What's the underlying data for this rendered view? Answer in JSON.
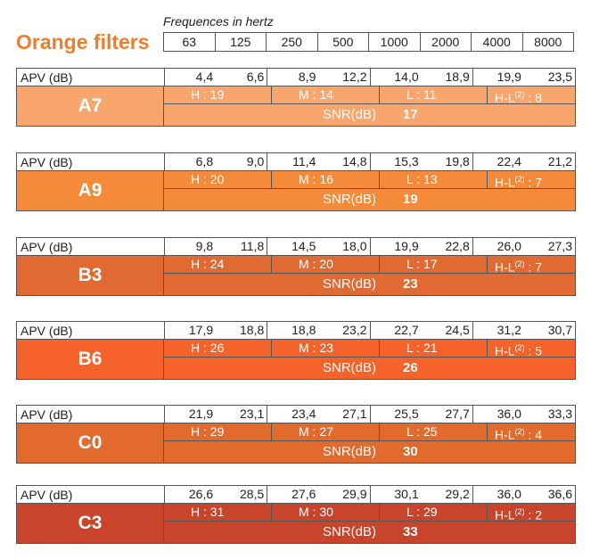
{
  "title": "Orange filters",
  "frequency_caption": "Frequences in hertz",
  "frequencies": [
    "63",
    "125",
    "250",
    "500",
    "1000",
    "2000",
    "4000",
    "8000"
  ],
  "apv_label": "APV (dB)",
  "snr_label": "SNR(dB)",
  "filters": [
    {
      "code": "A7",
      "color": "#f9a56e",
      "apv": [
        "4,4",
        "6,6",
        "8,9",
        "12,2",
        "14,0",
        "18,9",
        "19,9",
        "23,5"
      ],
      "H": "19",
      "M": "14",
      "L": "11",
      "HL": "8",
      "SNR": "17"
    },
    {
      "code": "A9",
      "color": "#f58a3a",
      "apv": [
        "6,8",
        "9,0",
        "11,4",
        "14,8",
        "15,3",
        "19,8",
        "22,4",
        "21,2"
      ],
      "H": "20",
      "M": "16",
      "L": "13",
      "HL": "7",
      "SNR": "19"
    },
    {
      "code": "B3",
      "color": "#e06a32",
      "apv": [
        "9,8",
        "11,8",
        "14,5",
        "18,0",
        "19,9",
        "22,8",
        "26,0",
        "27,3"
      ],
      "H": "24",
      "M": "20",
      "L": "17",
      "HL": "7",
      "SNR": "23"
    },
    {
      "code": "B6",
      "color": "#f5622a",
      "apv": [
        "17,9",
        "18,8",
        "18,8",
        "23,2",
        "22,7",
        "24,5",
        "31,2",
        "30,7"
      ],
      "H": "26",
      "M": "23",
      "L": "21",
      "HL": "5",
      "SNR": "26"
    },
    {
      "code": "C0",
      "color": "#e26a2c",
      "apv": [
        "21,9",
        "23,1",
        "23,4",
        "27,1",
        "25,5",
        "27,7",
        "36,0",
        "33,3"
      ],
      "H": "29",
      "M": "27",
      "L": "25",
      "HL": "4",
      "SNR": "30"
    },
    {
      "code": "C3",
      "color": "#c8442a",
      "apv": [
        "26,6",
        "28,5",
        "27,6",
        "29,9",
        "30,1",
        "29,2",
        "36,0",
        "36,6"
      ],
      "H": "31",
      "M": "30",
      "L": "29",
      "HL": "2",
      "SNR": "33"
    }
  ]
}
